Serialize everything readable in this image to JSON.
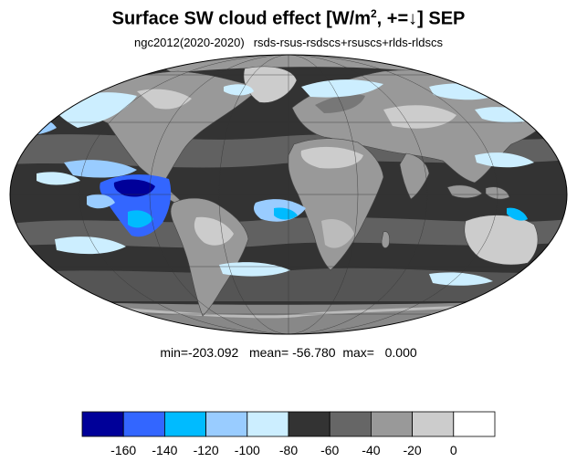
{
  "title": {
    "text": "Surface SW cloud effect [W/m",
    "superscript": "2",
    "suffix": ", +=↓]  SEP"
  },
  "subtitle": {
    "left": "ngc2012(2020-2020)",
    "right": "rsds-rsus-rsdscs+rsuscs+rlds-rldscs"
  },
  "stats": {
    "text": "min=-203.092   mean= -56.780  max=   0.000"
  },
  "colorbar": {
    "colors": [
      "#000099",
      "#3366ff",
      "#00bbff",
      "#99ccff",
      "#cceeff",
      "#333333",
      "#666666",
      "#999999",
      "#cccccc",
      "#ffffff"
    ],
    "labels": [
      "-160",
      "-140",
      "-120",
      "-100",
      "-80",
      "-60",
      "-40",
      "-20",
      "0"
    ]
  },
  "map": {
    "projection": "mollweide",
    "ocean_base_color": "#333333",
    "land_base_color": "#999999"
  }
}
